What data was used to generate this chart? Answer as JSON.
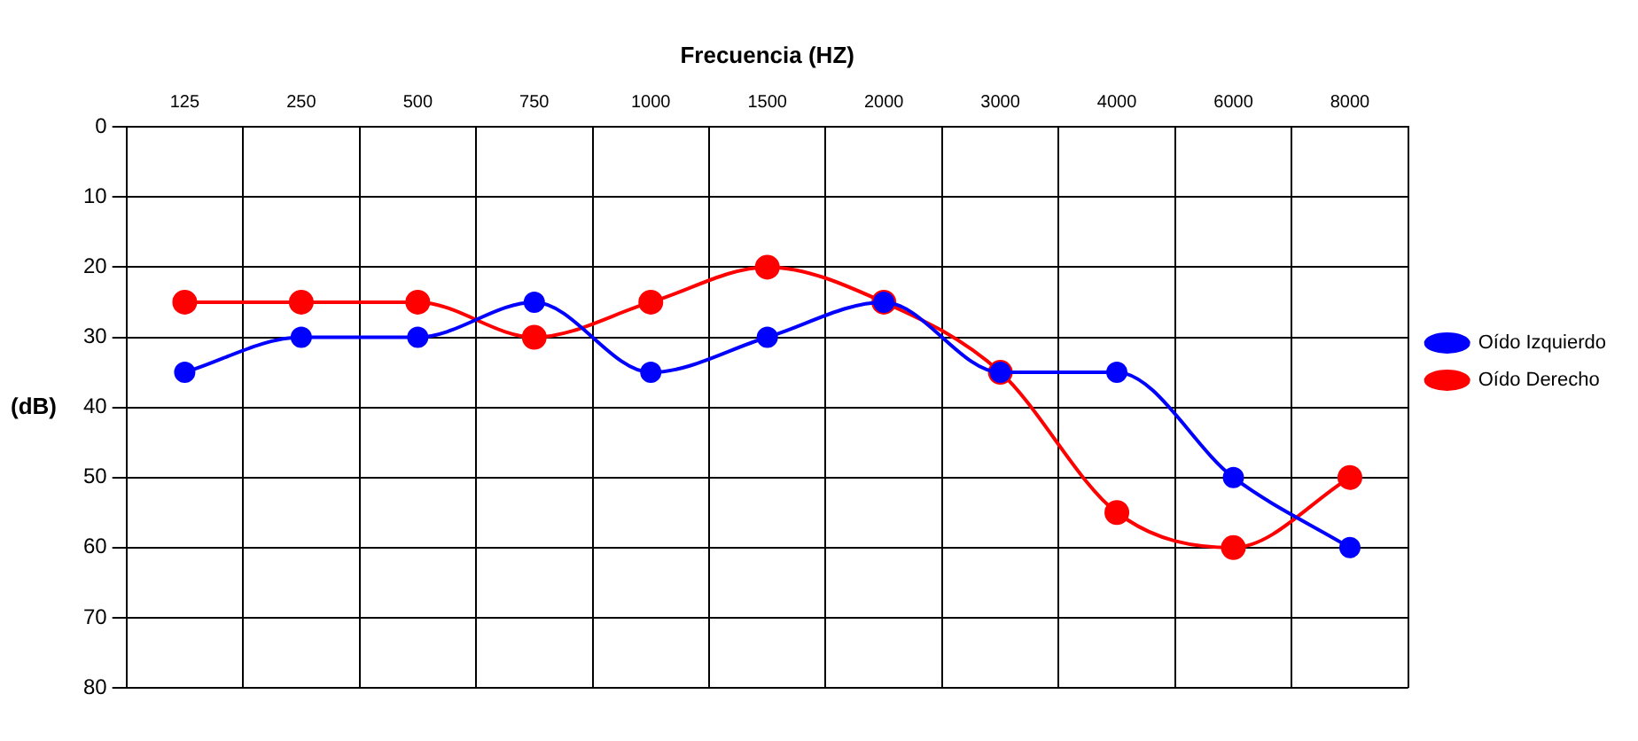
{
  "chart_data": {
    "type": "line",
    "xlabel": "Frecuencia (HZ)",
    "ylabel": "(dB)",
    "categories": [
      "125",
      "250",
      "500",
      "750",
      "1000",
      "1500",
      "2000",
      "3000",
      "4000",
      "6000",
      "8000"
    ],
    "series": [
      {
        "name": "Oído Derecho",
        "color": "#ff0000",
        "values": [
          25,
          25,
          25,
          30,
          25,
          20,
          25,
          35,
          55,
          60,
          50
        ]
      },
      {
        "name": "Oído Izquierdo",
        "color": "#0000ff",
        "values": [
          35,
          30,
          30,
          25,
          35,
          30,
          25,
          35,
          35,
          50,
          60
        ]
      }
    ],
    "ylim": [
      80,
      0
    ],
    "yticks": [
      0,
      10,
      20,
      30,
      40,
      50,
      60,
      70,
      80
    ],
    "grid": true,
    "legend": "right",
    "marker": "circle",
    "line_style": "solid"
  }
}
